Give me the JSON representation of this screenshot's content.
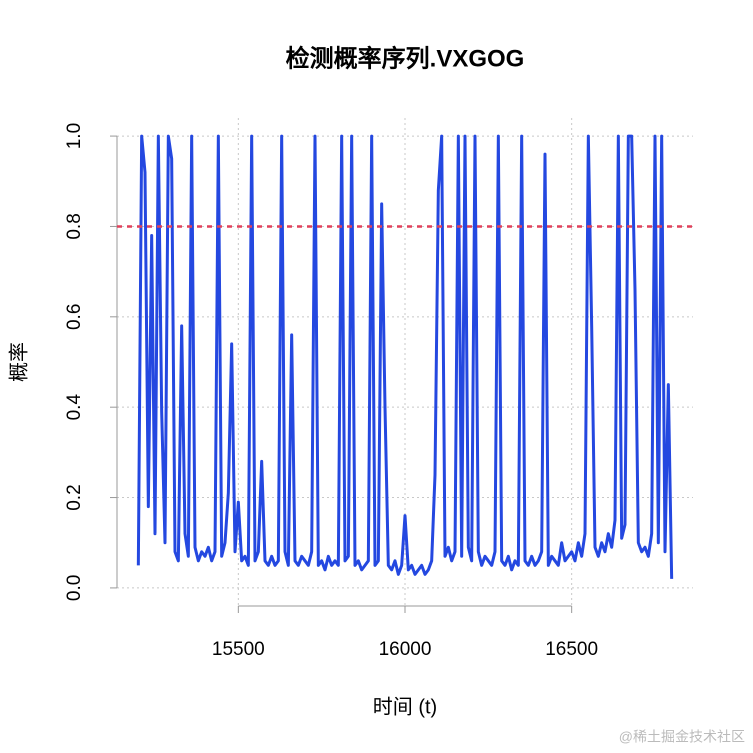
{
  "chart_data": {
    "type": "line",
    "title": "检测概率序列.VXGOG",
    "x_label": "时间 (t)",
    "y_label": "概率",
    "watermark": "@稀土掘金技术社区",
    "x": [
      15200,
      15210,
      15220,
      15230,
      15240,
      15250,
      15260,
      15270,
      15280,
      15290,
      15300,
      15310,
      15320,
      15330,
      15340,
      15350,
      15360,
      15370,
      15380,
      15390,
      15400,
      15410,
      15420,
      15430,
      15440,
      15450,
      15460,
      15470,
      15480,
      15490,
      15500,
      15510,
      15520,
      15530,
      15540,
      15550,
      15560,
      15570,
      15580,
      15590,
      15600,
      15610,
      15620,
      15630,
      15640,
      15650,
      15660,
      15670,
      15680,
      15690,
      15700,
      15710,
      15720,
      15730,
      15740,
      15750,
      15760,
      15770,
      15780,
      15790,
      15800,
      15810,
      15820,
      15830,
      15840,
      15850,
      15860,
      15870,
      15880,
      15890,
      15900,
      15910,
      15920,
      15930,
      15940,
      15950,
      15960,
      15970,
      15980,
      15990,
      16000,
      16010,
      16020,
      16030,
      16040,
      16050,
      16060,
      16070,
      16080,
      16090,
      16100,
      16110,
      16120,
      16130,
      16140,
      16150,
      16160,
      16170,
      16180,
      16190,
      16200,
      16210,
      16220,
      16230,
      16240,
      16250,
      16260,
      16270,
      16280,
      16290,
      16300,
      16310,
      16320,
      16330,
      16340,
      16350,
      16360,
      16370,
      16380,
      16390,
      16400,
      16410,
      16420,
      16430,
      16440,
      16450,
      16460,
      16470,
      16480,
      16490,
      16500,
      16510,
      16520,
      16530,
      16540,
      16550,
      16560,
      16570,
      16580,
      16590,
      16600,
      16610,
      16620,
      16630,
      16640,
      16650,
      16660,
      16670,
      16680,
      16690,
      16700,
      16710,
      16720,
      16730,
      16740,
      16750,
      16760,
      16770,
      16780,
      16790,
      16800
    ],
    "series": [
      {
        "color": "#2448e0",
        "values": [
          0.05,
          1,
          0.92,
          0.18,
          0.78,
          0.12,
          1,
          0.39,
          0.1,
          1,
          0.95,
          0.08,
          0.06,
          0.58,
          0.12,
          0.07,
          1,
          0.09,
          0.06,
          0.08,
          0.07,
          0.09,
          0.06,
          0.08,
          1,
          0.07,
          0.1,
          0.21,
          0.54,
          0.08,
          0.19,
          0.06,
          0.07,
          0.05,
          1,
          0.06,
          0.08,
          0.28,
          0.06,
          0.05,
          0.07,
          0.05,
          0.06,
          1,
          0.08,
          0.05,
          0.56,
          0.06,
          0.05,
          0.07,
          0.06,
          0.05,
          0.08,
          1,
          0.05,
          0.06,
          0.04,
          0.07,
          0.05,
          0.06,
          0.05,
          1,
          0.06,
          0.07,
          1,
          0.05,
          0.06,
          0.04,
          0.05,
          0.06,
          1,
          0.05,
          0.06,
          0.85,
          0.4,
          0.05,
          0.04,
          0.06,
          0.03,
          0.05,
          0.16,
          0.04,
          0.05,
          0.03,
          0.04,
          0.05,
          0.03,
          0.04,
          0.06,
          0.25,
          0.88,
          1,
          0.07,
          0.09,
          0.06,
          0.08,
          1,
          0.07,
          1,
          0.09,
          0.06,
          1,
          0.08,
          0.05,
          0.07,
          0.06,
          0.05,
          0.08,
          1,
          0.06,
          0.05,
          0.07,
          0.04,
          0.06,
          0.05,
          1,
          0.06,
          0.05,
          0.07,
          0.05,
          0.06,
          0.08,
          0.96,
          0.05,
          0.07,
          0.06,
          0.05,
          0.1,
          0.06,
          0.07,
          0.08,
          0.06,
          0.1,
          0.07,
          0.12,
          1,
          0.58,
          0.09,
          0.07,
          0.1,
          0.08,
          0.12,
          0.09,
          0.15,
          1,
          0.11,
          0.14,
          1,
          1,
          0.66,
          0.1,
          0.08,
          0.09,
          0.07,
          0.12,
          1,
          0.1,
          1,
          0.08,
          0.45,
          0.02
        ]
      }
    ],
    "threshold": {
      "value": 0.8,
      "color": "#e0405a"
    },
    "xlim": [
      15136,
      16864
    ],
    "ylim": [
      -0.04,
      1.04
    ],
    "xticks": [
      15500,
      16000,
      16500
    ],
    "yticks": [
      {
        "value": 0,
        "label": "0.0"
      },
      {
        "value": 0.2,
        "label": "0.2"
      },
      {
        "value": 0.4,
        "label": "0.4"
      },
      {
        "value": 0.6,
        "label": "0.6"
      },
      {
        "value": 0.8,
        "label": "0.8"
      },
      {
        "value": 1,
        "label": "1.0"
      }
    ],
    "grid": true
  }
}
